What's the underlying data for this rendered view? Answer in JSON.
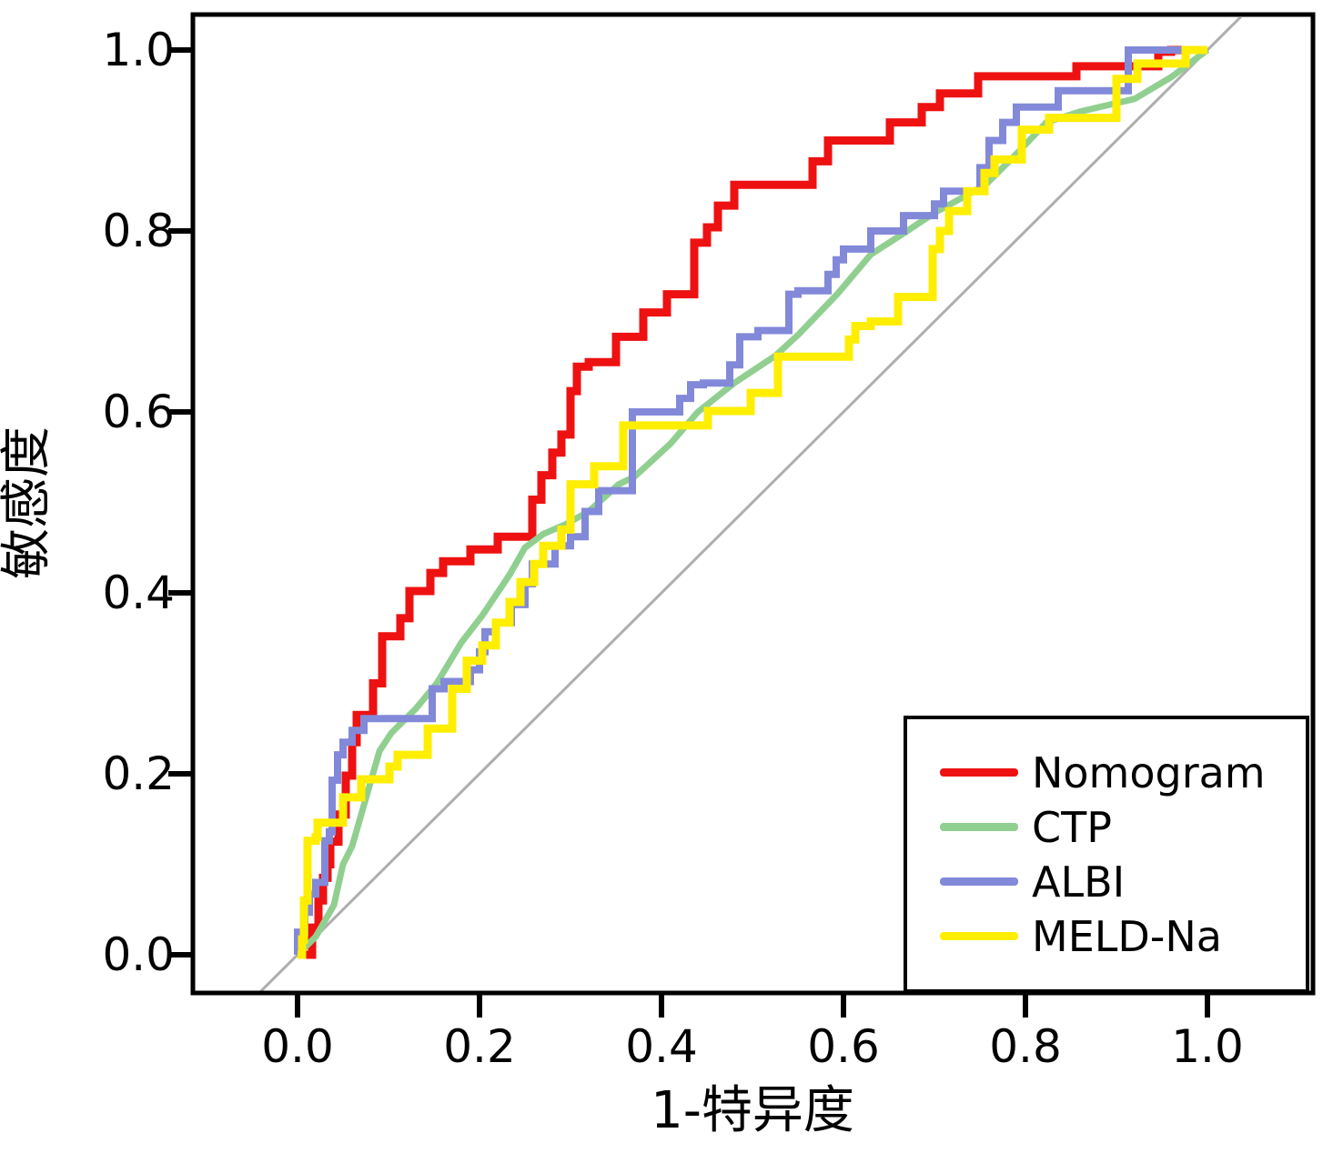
{
  "figure": {
    "background": "#ffffff",
    "axis_color": "#000000",
    "diagonal_color": "#aeaeae"
  },
  "chart_data": {
    "type": "line",
    "title": "",
    "xlabel": "1-特异度",
    "ylabel": "敏感度",
    "xlim": [
      0.0,
      1.0
    ],
    "ylim": [
      0.0,
      1.0
    ],
    "grid": false,
    "legend_position": "lower right",
    "x_ticks": [
      0.0,
      0.2,
      0.4,
      0.6,
      0.8,
      1.0
    ],
    "x_tick_labels": [
      "0.0",
      "0.2",
      "0.4",
      "0.6",
      "0.8",
      "1.0"
    ],
    "y_ticks": [
      0.0,
      0.2,
      0.4,
      0.6,
      0.8,
      1.0
    ],
    "y_tick_labels": [
      "0.0",
      "0.2",
      "0.4",
      "0.6",
      "0.8",
      "1.0"
    ],
    "reference_line": {
      "from": [
        0,
        0
      ],
      "to": [
        1,
        1
      ],
      "color": "#aeaeae",
      "width": 3
    },
    "series": [
      {
        "name": "Nomogram",
        "color": "#ee1111",
        "width": 9,
        "points": [
          [
            0.0,
            0.0
          ],
          [
            0.016,
            0.0
          ],
          [
            0.016,
            0.03
          ],
          [
            0.023,
            0.03
          ],
          [
            0.023,
            0.06
          ],
          [
            0.028,
            0.06
          ],
          [
            0.028,
            0.085
          ],
          [
            0.033,
            0.085
          ],
          [
            0.033,
            0.1
          ],
          [
            0.036,
            0.1
          ],
          [
            0.036,
            0.125
          ],
          [
            0.045,
            0.125
          ],
          [
            0.045,
            0.155
          ],
          [
            0.053,
            0.155
          ],
          [
            0.053,
            0.198
          ],
          [
            0.06,
            0.198
          ],
          [
            0.06,
            0.235
          ],
          [
            0.065,
            0.235
          ],
          [
            0.065,
            0.265
          ],
          [
            0.083,
            0.265
          ],
          [
            0.083,
            0.3
          ],
          [
            0.093,
            0.3
          ],
          [
            0.093,
            0.352
          ],
          [
            0.113,
            0.352
          ],
          [
            0.113,
            0.372
          ],
          [
            0.123,
            0.372
          ],
          [
            0.123,
            0.402
          ],
          [
            0.146,
            0.402
          ],
          [
            0.146,
            0.422
          ],
          [
            0.16,
            0.422
          ],
          [
            0.16,
            0.435
          ],
          [
            0.19,
            0.435
          ],
          [
            0.19,
            0.448
          ],
          [
            0.22,
            0.448
          ],
          [
            0.22,
            0.462
          ],
          [
            0.258,
            0.462
          ],
          [
            0.258,
            0.503
          ],
          [
            0.268,
            0.503
          ],
          [
            0.268,
            0.53
          ],
          [
            0.28,
            0.53
          ],
          [
            0.28,
            0.555
          ],
          [
            0.29,
            0.555
          ],
          [
            0.29,
            0.575
          ],
          [
            0.3,
            0.575
          ],
          [
            0.3,
            0.623
          ],
          [
            0.307,
            0.623
          ],
          [
            0.307,
            0.65
          ],
          [
            0.32,
            0.65
          ],
          [
            0.32,
            0.655
          ],
          [
            0.35,
            0.655
          ],
          [
            0.35,
            0.683
          ],
          [
            0.38,
            0.683
          ],
          [
            0.38,
            0.71
          ],
          [
            0.406,
            0.71
          ],
          [
            0.406,
            0.73
          ],
          [
            0.436,
            0.73
          ],
          [
            0.436,
            0.787
          ],
          [
            0.45,
            0.787
          ],
          [
            0.45,
            0.804
          ],
          [
            0.462,
            0.804
          ],
          [
            0.462,
            0.828
          ],
          [
            0.48,
            0.828
          ],
          [
            0.48,
            0.851
          ],
          [
            0.566,
            0.851
          ],
          [
            0.566,
            0.877
          ],
          [
            0.583,
            0.877
          ],
          [
            0.583,
            0.9
          ],
          [
            0.651,
            0.9
          ],
          [
            0.651,
            0.92
          ],
          [
            0.686,
            0.92
          ],
          [
            0.686,
            0.937
          ],
          [
            0.706,
            0.937
          ],
          [
            0.706,
            0.952
          ],
          [
            0.748,
            0.952
          ],
          [
            0.748,
            0.971
          ],
          [
            0.856,
            0.971
          ],
          [
            0.856,
            0.982
          ],
          [
            0.946,
            0.982
          ],
          [
            0.946,
            0.998
          ],
          [
            0.96,
            0.998
          ],
          [
            0.96,
            1.0
          ],
          [
            1.0,
            1.0
          ]
        ]
      },
      {
        "name": "CTP",
        "color": "#90cf90",
        "width": 7,
        "points": [
          [
            0.0,
            0.0
          ],
          [
            0.02,
            0.02
          ],
          [
            0.04,
            0.055
          ],
          [
            0.05,
            0.1
          ],
          [
            0.06,
            0.12
          ],
          [
            0.08,
            0.19
          ],
          [
            0.09,
            0.225
          ],
          [
            0.103,
            0.245
          ],
          [
            0.13,
            0.272
          ],
          [
            0.153,
            0.3
          ],
          [
            0.18,
            0.345
          ],
          [
            0.203,
            0.375
          ],
          [
            0.233,
            0.42
          ],
          [
            0.25,
            0.45
          ],
          [
            0.27,
            0.465
          ],
          [
            0.293,
            0.475
          ],
          [
            0.32,
            0.49
          ],
          [
            0.353,
            0.52
          ],
          [
            0.37,
            0.528
          ],
          [
            0.41,
            0.565
          ],
          [
            0.44,
            0.6
          ],
          [
            0.48,
            0.632
          ],
          [
            0.525,
            0.662
          ],
          [
            0.55,
            0.685
          ],
          [
            0.593,
            0.73
          ],
          [
            0.63,
            0.774
          ],
          [
            0.67,
            0.8
          ],
          [
            0.7,
            0.82
          ],
          [
            0.756,
            0.851
          ],
          [
            0.79,
            0.885
          ],
          [
            0.823,
            0.92
          ],
          [
            0.86,
            0.932
          ],
          [
            0.92,
            0.946
          ],
          [
            0.96,
            0.97
          ],
          [
            1.0,
            1.0
          ]
        ]
      },
      {
        "name": "ALBI",
        "color": "#8289d9",
        "width": 8,
        "points": [
          [
            0.0,
            0.0
          ],
          [
            0.0,
            0.025
          ],
          [
            0.008,
            0.025
          ],
          [
            0.008,
            0.047
          ],
          [
            0.013,
            0.047
          ],
          [
            0.013,
            0.067
          ],
          [
            0.02,
            0.067
          ],
          [
            0.02,
            0.08
          ],
          [
            0.03,
            0.08
          ],
          [
            0.03,
            0.126
          ],
          [
            0.035,
            0.126
          ],
          [
            0.035,
            0.136
          ],
          [
            0.038,
            0.136
          ],
          [
            0.038,
            0.193
          ],
          [
            0.044,
            0.193
          ],
          [
            0.044,
            0.221
          ],
          [
            0.05,
            0.221
          ],
          [
            0.05,
            0.235
          ],
          [
            0.06,
            0.235
          ],
          [
            0.06,
            0.248
          ],
          [
            0.073,
            0.248
          ],
          [
            0.073,
            0.261
          ],
          [
            0.148,
            0.261
          ],
          [
            0.148,
            0.294
          ],
          [
            0.161,
            0.294
          ],
          [
            0.161,
            0.302
          ],
          [
            0.19,
            0.302
          ],
          [
            0.19,
            0.315
          ],
          [
            0.2,
            0.315
          ],
          [
            0.2,
            0.335
          ],
          [
            0.206,
            0.335
          ],
          [
            0.206,
            0.357
          ],
          [
            0.218,
            0.357
          ],
          [
            0.218,
            0.367
          ],
          [
            0.235,
            0.367
          ],
          [
            0.235,
            0.387
          ],
          [
            0.25,
            0.387
          ],
          [
            0.25,
            0.41
          ],
          [
            0.258,
            0.41
          ],
          [
            0.258,
            0.432
          ],
          [
            0.283,
            0.432
          ],
          [
            0.283,
            0.452
          ],
          [
            0.3,
            0.452
          ],
          [
            0.3,
            0.462
          ],
          [
            0.316,
            0.462
          ],
          [
            0.316,
            0.49
          ],
          [
            0.331,
            0.49
          ],
          [
            0.331,
            0.513
          ],
          [
            0.368,
            0.513
          ],
          [
            0.368,
            0.6
          ],
          [
            0.42,
            0.6
          ],
          [
            0.42,
            0.615
          ],
          [
            0.432,
            0.615
          ],
          [
            0.432,
            0.63
          ],
          [
            0.446,
            0.63
          ],
          [
            0.446,
            0.632
          ],
          [
            0.475,
            0.632
          ],
          [
            0.475,
            0.652
          ],
          [
            0.486,
            0.652
          ],
          [
            0.486,
            0.683
          ],
          [
            0.506,
            0.683
          ],
          [
            0.506,
            0.69
          ],
          [
            0.54,
            0.69
          ],
          [
            0.54,
            0.73
          ],
          [
            0.55,
            0.73
          ],
          [
            0.55,
            0.734
          ],
          [
            0.583,
            0.734
          ],
          [
            0.583,
            0.752
          ],
          [
            0.592,
            0.752
          ],
          [
            0.592,
            0.768
          ],
          [
            0.6,
            0.768
          ],
          [
            0.6,
            0.78
          ],
          [
            0.63,
            0.78
          ],
          [
            0.63,
            0.8
          ],
          [
            0.666,
            0.8
          ],
          [
            0.666,
            0.817
          ],
          [
            0.7,
            0.817
          ],
          [
            0.7,
            0.83
          ],
          [
            0.71,
            0.83
          ],
          [
            0.71,
            0.844
          ],
          [
            0.75,
            0.844
          ],
          [
            0.75,
            0.87
          ],
          [
            0.76,
            0.87
          ],
          [
            0.76,
            0.9
          ],
          [
            0.775,
            0.9
          ],
          [
            0.775,
            0.92
          ],
          [
            0.79,
            0.92
          ],
          [
            0.79,
            0.937
          ],
          [
            0.836,
            0.937
          ],
          [
            0.836,
            0.955
          ],
          [
            0.913,
            0.955
          ],
          [
            0.913,
            1.0
          ],
          [
            1.0,
            1.0
          ]
        ]
      },
      {
        "name": "MELD-Na",
        "color": "#ffee00",
        "width": 9,
        "points": [
          [
            0.0,
            0.0
          ],
          [
            0.005,
            0.0
          ],
          [
            0.005,
            0.017
          ],
          [
            0.007,
            0.017
          ],
          [
            0.007,
            0.06
          ],
          [
            0.011,
            0.06
          ],
          [
            0.011,
            0.126
          ],
          [
            0.02,
            0.126
          ],
          [
            0.02,
            0.13
          ],
          [
            0.022,
            0.13
          ],
          [
            0.022,
            0.146
          ],
          [
            0.05,
            0.146
          ],
          [
            0.05,
            0.174
          ],
          [
            0.07,
            0.174
          ],
          [
            0.07,
            0.194
          ],
          [
            0.101,
            0.194
          ],
          [
            0.101,
            0.208
          ],
          [
            0.11,
            0.208
          ],
          [
            0.11,
            0.221
          ],
          [
            0.143,
            0.221
          ],
          [
            0.143,
            0.25
          ],
          [
            0.17,
            0.25
          ],
          [
            0.17,
            0.294
          ],
          [
            0.186,
            0.294
          ],
          [
            0.186,
            0.325
          ],
          [
            0.203,
            0.325
          ],
          [
            0.203,
            0.342
          ],
          [
            0.218,
            0.342
          ],
          [
            0.218,
            0.367
          ],
          [
            0.233,
            0.367
          ],
          [
            0.233,
            0.39
          ],
          [
            0.245,
            0.39
          ],
          [
            0.245,
            0.412
          ],
          [
            0.26,
            0.412
          ],
          [
            0.26,
            0.432
          ],
          [
            0.27,
            0.432
          ],
          [
            0.27,
            0.452
          ],
          [
            0.29,
            0.452
          ],
          [
            0.29,
            0.47
          ],
          [
            0.3,
            0.47
          ],
          [
            0.3,
            0.52
          ],
          [
            0.326,
            0.52
          ],
          [
            0.326,
            0.54
          ],
          [
            0.358,
            0.54
          ],
          [
            0.358,
            0.585
          ],
          [
            0.451,
            0.585
          ],
          [
            0.451,
            0.601
          ],
          [
            0.498,
            0.601
          ],
          [
            0.498,
            0.621
          ],
          [
            0.528,
            0.621
          ],
          [
            0.528,
            0.661
          ],
          [
            0.606,
            0.661
          ],
          [
            0.606,
            0.68
          ],
          [
            0.613,
            0.68
          ],
          [
            0.613,
            0.695
          ],
          [
            0.63,
            0.695
          ],
          [
            0.63,
            0.7
          ],
          [
            0.66,
            0.7
          ],
          [
            0.66,
            0.727
          ],
          [
            0.698,
            0.727
          ],
          [
            0.698,
            0.78
          ],
          [
            0.706,
            0.78
          ],
          [
            0.706,
            0.8
          ],
          [
            0.716,
            0.8
          ],
          [
            0.716,
            0.822
          ],
          [
            0.736,
            0.822
          ],
          [
            0.736,
            0.844
          ],
          [
            0.755,
            0.844
          ],
          [
            0.755,
            0.864
          ],
          [
            0.766,
            0.864
          ],
          [
            0.766,
            0.879
          ],
          [
            0.796,
            0.879
          ],
          [
            0.796,
            0.912
          ],
          [
            0.826,
            0.912
          ],
          [
            0.826,
            0.925
          ],
          [
            0.9,
            0.925
          ],
          [
            0.9,
            0.968
          ],
          [
            0.923,
            0.968
          ],
          [
            0.923,
            0.985
          ],
          [
            0.976,
            0.985
          ],
          [
            0.976,
            1.0
          ],
          [
            1.0,
            1.0
          ]
        ]
      }
    ]
  },
  "legend": {
    "items": [
      {
        "label": "Nomogram",
        "color": "#ee1111"
      },
      {
        "label": "CTP",
        "color": "#90cf90"
      },
      {
        "label": "ALBI",
        "color": "#8289d9"
      },
      {
        "label": "MELD-Na",
        "color": "#ffee00"
      }
    ]
  }
}
